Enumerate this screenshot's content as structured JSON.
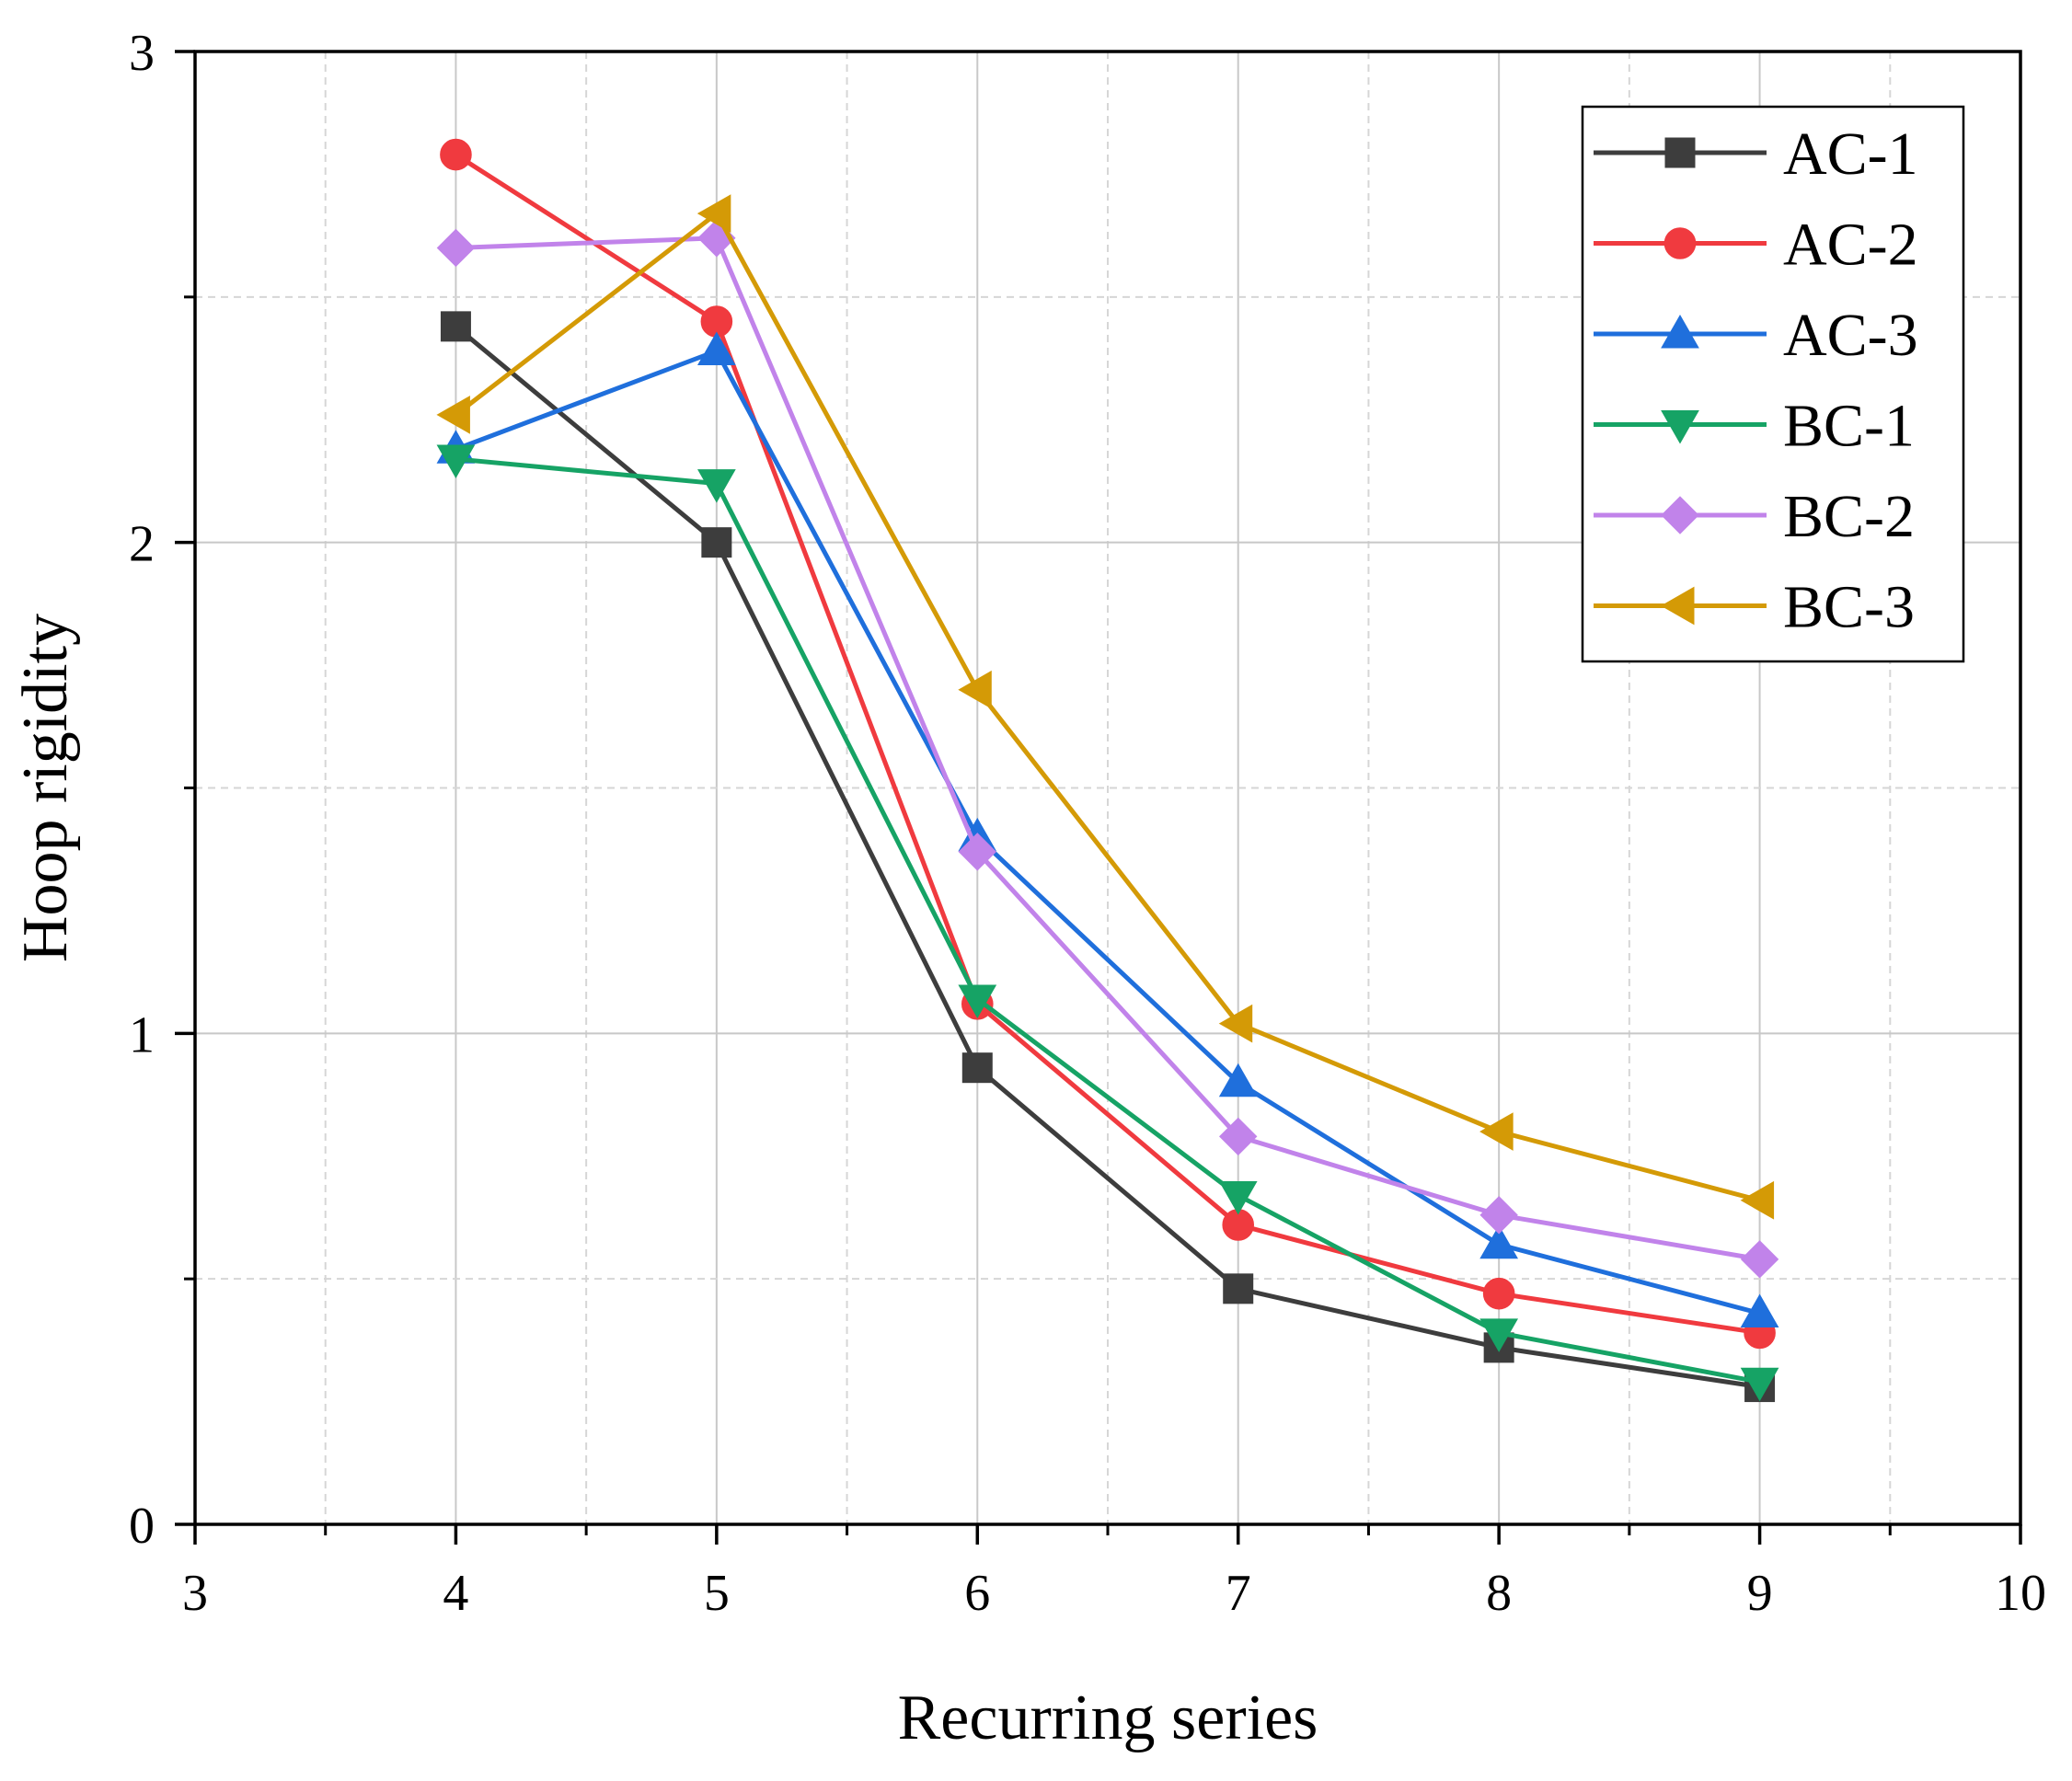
{
  "chart_data": {
    "type": "line",
    "title": "",
    "xlabel": "Recurring series",
    "ylabel": "Hoop rigidity",
    "xlim": [
      3,
      10
    ],
    "ylim": [
      0,
      3
    ],
    "xticks": [
      3,
      4,
      5,
      6,
      7,
      8,
      9,
      10
    ],
    "yticks": [
      0,
      1,
      2,
      3
    ],
    "xtick_labels": [
      "3",
      "4",
      "5",
      "6",
      "7",
      "8",
      "9",
      "10"
    ],
    "ytick_labels": [
      "0",
      "1",
      "2",
      "3"
    ],
    "grid": true,
    "legend_position": "top-right",
    "x": [
      4,
      5,
      6,
      7,
      8,
      9
    ],
    "series": [
      {
        "name": "AC-1",
        "color": "#3d3d3d",
        "marker": "square",
        "values": [
          2.44,
          2.0,
          0.93,
          0.48,
          0.36,
          0.28
        ]
      },
      {
        "name": "AC-2",
        "color": "#f03a3f",
        "marker": "circle",
        "values": [
          2.79,
          2.45,
          1.06,
          0.61,
          0.47,
          0.39
        ]
      },
      {
        "name": "AC-3",
        "color": "#1f6fdc",
        "marker": "triangle-up",
        "values": [
          2.19,
          2.39,
          1.4,
          0.9,
          0.57,
          0.43
        ]
      },
      {
        "name": "BC-1",
        "color": "#16a365",
        "marker": "triangle-down",
        "values": [
          2.17,
          2.12,
          1.07,
          0.67,
          0.39,
          0.29
        ]
      },
      {
        "name": "BC-2",
        "color": "#c183ea",
        "marker": "diamond",
        "values": [
          2.6,
          2.62,
          1.37,
          0.79,
          0.63,
          0.54
        ]
      },
      {
        "name": "BC-3",
        "color": "#d49a06",
        "marker": "triangle-left",
        "values": [
          2.26,
          2.67,
          1.7,
          1.02,
          0.8,
          0.66
        ]
      }
    ]
  }
}
